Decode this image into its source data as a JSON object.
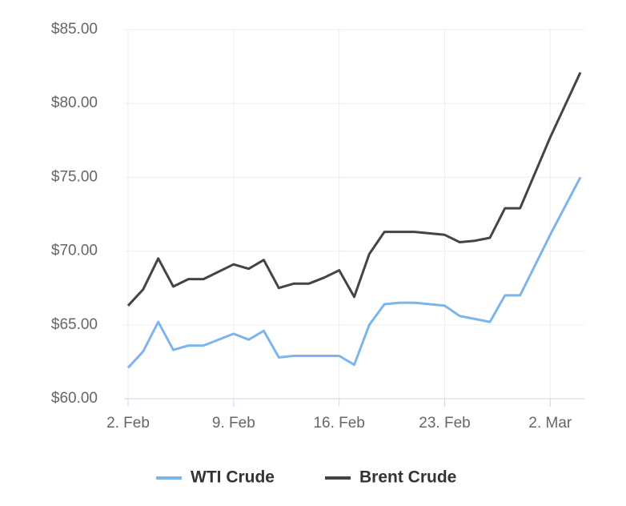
{
  "chart_data": {
    "type": "line",
    "x": [
      "2. Feb",
      "3. Feb",
      "4. Feb",
      "5. Feb",
      "6. Feb",
      "7. Feb",
      "9. Feb",
      "10. Feb",
      "11. Feb",
      "12. Feb",
      "13. Feb",
      "14. Feb",
      "15. Feb",
      "16. Feb",
      "17. Feb",
      "18. Feb",
      "19. Feb",
      "20. Feb",
      "21. Feb",
      "23. Feb",
      "24. Feb",
      "25. Feb",
      "26. Feb",
      "27. Feb",
      "28. Feb",
      "2. Mar",
      "4. Mar"
    ],
    "series": [
      {
        "name": "WTI Crude",
        "color": "#7cb5ec",
        "values": [
          62.1,
          63.2,
          65.2,
          63.3,
          63.6,
          63.6,
          64.4,
          64.0,
          64.6,
          62.8,
          62.9,
          62.9,
          62.9,
          62.9,
          62.3,
          65.0,
          66.4,
          66.5,
          66.5,
          66.3,
          65.6,
          65.4,
          65.2,
          67.0,
          67.0,
          71.1,
          75.0
        ]
      },
      {
        "name": "Brent Crude",
        "color": "#434348",
        "values": [
          66.3,
          67.4,
          69.5,
          67.6,
          68.1,
          68.1,
          69.1,
          68.8,
          69.4,
          67.5,
          67.8,
          67.8,
          68.2,
          68.7,
          66.9,
          69.8,
          71.3,
          71.3,
          71.3,
          71.1,
          70.6,
          70.7,
          70.9,
          72.9,
          72.9,
          77.7,
          82.1
        ]
      }
    ],
    "xlim": [
      "2. Feb",
      "4. Mar"
    ],
    "xticks": [
      "2. Feb",
      "9. Feb",
      "16. Feb",
      "23. Feb",
      "2. Mar"
    ],
    "ylim": [
      60,
      85
    ],
    "yticks": [
      {
        "value": 60,
        "label": "$60.00"
      },
      {
        "value": 65,
        "label": "$65.00"
      },
      {
        "value": 70,
        "label": "$70.00"
      },
      {
        "value": 75,
        "label": "$75.00"
      },
      {
        "value": 80,
        "label": "$80.00"
      },
      {
        "value": 85,
        "label": "$85.00"
      }
    ],
    "grid": true,
    "legend": "bottom"
  }
}
